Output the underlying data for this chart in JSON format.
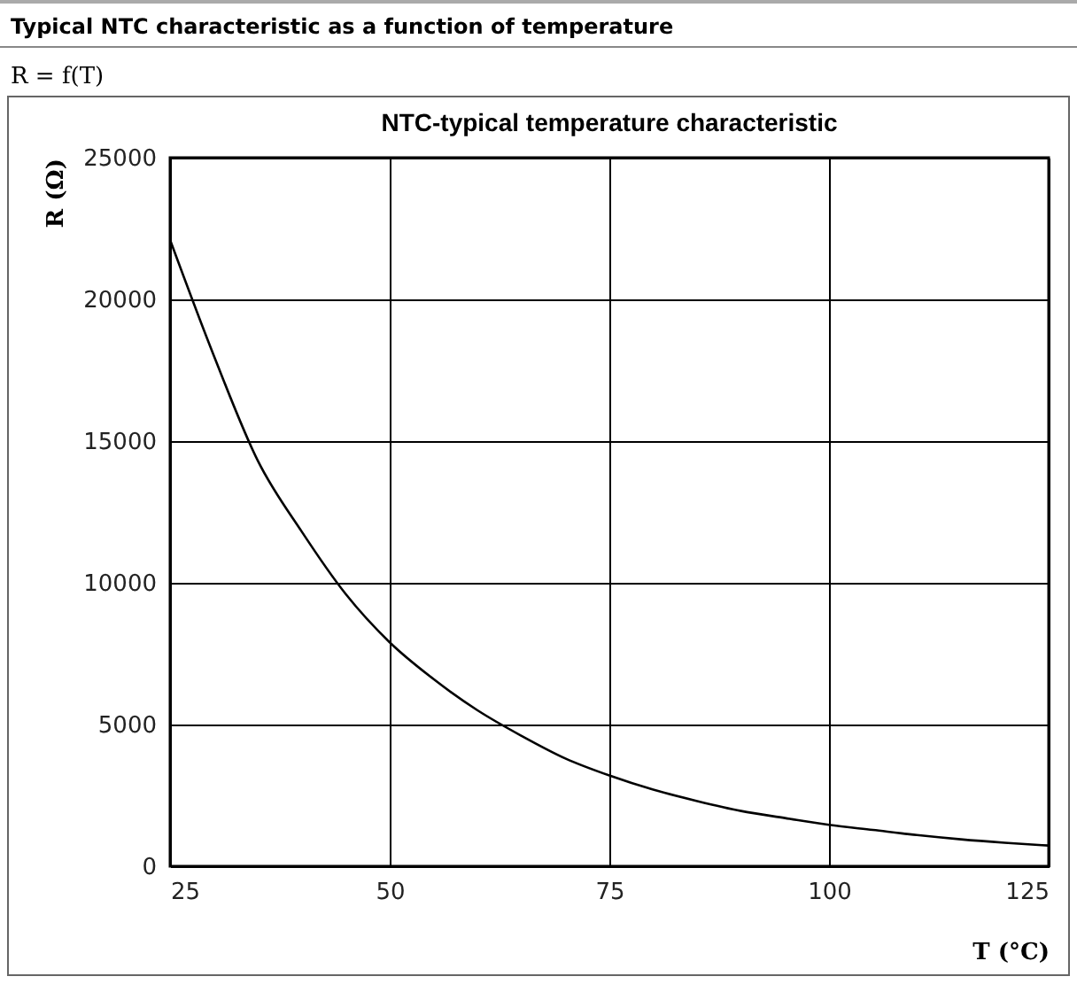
{
  "chart_data": {
    "type": "line",
    "title": "NTC-typical  temperature characteristic",
    "subtitle": "R = f(T)",
    "annotations": [
      "Typical NTC characteristic as a  function of temperature"
    ],
    "xlabel": "T (°C)",
    "ylabel": "R (Ω)",
    "x": [
      25,
      30,
      35,
      40,
      45,
      50,
      55,
      60,
      65,
      70,
      75,
      80,
      85,
      90,
      95,
      100,
      105,
      110,
      115,
      120,
      125
    ],
    "series": [
      {
        "color": "#000000",
        "values": [
          22100,
          18000,
          14300,
          11800,
          9600,
          7900,
          6600,
          5500,
          4600,
          3800,
          3200,
          2700,
          2300,
          1950,
          1700,
          1460,
          1280,
          1100,
          950,
          830,
          730
        ]
      }
    ],
    "xlim": [
      25,
      125
    ],
    "xticks": [
      25,
      50,
      75,
      100,
      125
    ],
    "ylim": [
      0,
      25000
    ],
    "yticks": [
      0,
      5000,
      10000,
      15000,
      20000,
      25000
    ],
    "grid": true,
    "marker": "none",
    "line_style": "solid"
  }
}
